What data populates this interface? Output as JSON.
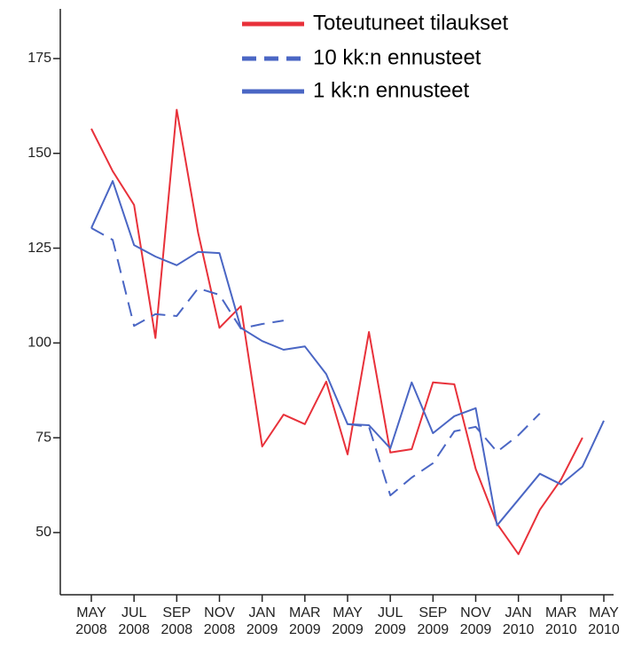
{
  "chart_data": {
    "type": "line",
    "categories": [
      [
        "MAY",
        "2008"
      ],
      null,
      [
        "JUL",
        "2008"
      ],
      null,
      [
        "SEP",
        "2008"
      ],
      null,
      [
        "NOV",
        "2008"
      ],
      null,
      [
        "JAN",
        "2009"
      ],
      null,
      [
        "MAR",
        "2009"
      ],
      null,
      [
        "MAY",
        "2009"
      ],
      null,
      [
        "JUL",
        "2009"
      ],
      null,
      [
        "SEP",
        "2009"
      ],
      null,
      [
        "NOV",
        "2009"
      ],
      null,
      [
        "JAN",
        "2010"
      ],
      null,
      [
        "MAR",
        "2010"
      ],
      null,
      [
        "MAY",
        "2010"
      ]
    ],
    "series": [
      {
        "name": "Toteutuneet tilaukset",
        "color": "#e8313a",
        "dash": false,
        "values": [
          156.5,
          145.3,
          136.4,
          101.3,
          161.5,
          129.1,
          104.0,
          109.7,
          72.7,
          81.1,
          78.6,
          89.8,
          70.6,
          102.9,
          71.1,
          72.0,
          89.6,
          89.1,
          66.8,
          52.3,
          44.3,
          56.0,
          64.0,
          75.0,
          null
        ]
      },
      {
        "name": "10 kk:n ennusteet",
        "color": "#4a66c4",
        "dash": true,
        "values": [
          130.3,
          127.2,
          104.5,
          107.6,
          107.1,
          114.4,
          112.7,
          103.8,
          105.0,
          105.9,
          null,
          null,
          78.6,
          77.9,
          59.8,
          64.5,
          68.3,
          76.7,
          77.9,
          71.3,
          75.7,
          81.4,
          null,
          null,
          null
        ]
      },
      {
        "name": "1 kk:n ennusteet",
        "color": "#4a66c4",
        "dash": false,
        "values": [
          130.3,
          142.7,
          125.8,
          122.8,
          120.5,
          124.0,
          123.7,
          104.0,
          100.5,
          98.2,
          99.1,
          91.8,
          78.6,
          78.3,
          72.2,
          89.6,
          76.2,
          80.7,
          82.8,
          51.9,
          58.7,
          65.5,
          62.7,
          67.4,
          79.5
        ]
      }
    ],
    "ylim": [
      33.6,
      188.1
    ],
    "yticks": [
      50,
      75,
      100,
      125,
      150,
      175
    ],
    "legend": "top-right"
  }
}
